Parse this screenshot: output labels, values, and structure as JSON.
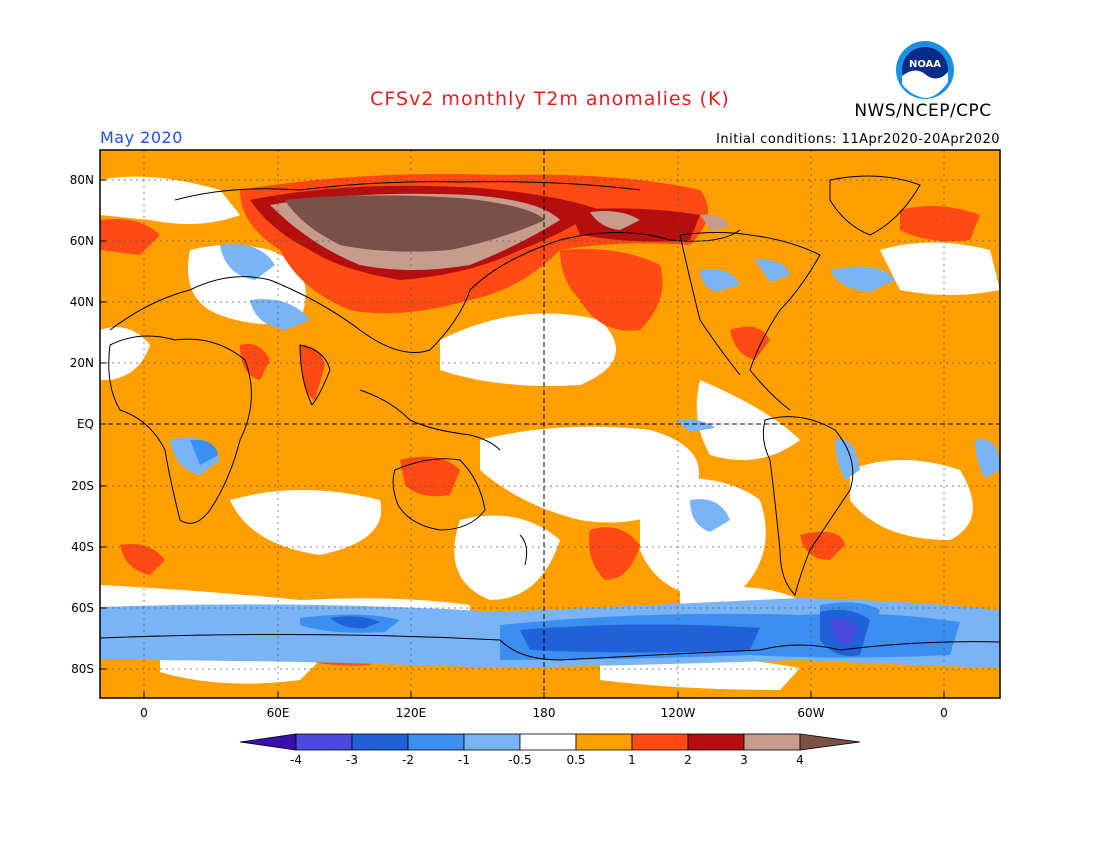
{
  "header": {
    "title": "CFSv2 monthly T2m anomalies (K)",
    "month": "May 2020",
    "initial_conditions": "Initial conditions: 11Apr2020-20Apr2020",
    "agency": "NWS/NCEP/CPC",
    "logo_text": "NOAA"
  },
  "map": {
    "lat_labels": [
      "80N",
      "60N",
      "40N",
      "20N",
      "EQ",
      "20S",
      "40S",
      "60S",
      "80S"
    ],
    "lon_labels": [
      "0",
      "60E",
      "120E",
      "180",
      "120W",
      "60W",
      "0"
    ]
  },
  "colorbar": {
    "labels": [
      "-4",
      "-3",
      "-2",
      "-1",
      "-0.5",
      "0.5",
      "1",
      "2",
      "3",
      "4"
    ],
    "colors": [
      "#3a0fb0",
      "#4a4ae0",
      "#2060d8",
      "#3c8ef0",
      "#78b4f6",
      "#ffffff",
      "#ffa000",
      "#ff4a14",
      "#b50e0e",
      "#c89c8c",
      "#7a5048"
    ]
  },
  "colors": {
    "title": "#e02020",
    "month": "#2050e0",
    "weak_warm": "#ffa000",
    "warm": "#ff4a14",
    "strong_warm": "#b50e0e",
    "very_warm": "#c89c8c",
    "extreme_warm": "#7a5048",
    "weak_cold": "#78b4f6",
    "cold": "#3c8ef0",
    "strong_cold": "#2060d8"
  }
}
